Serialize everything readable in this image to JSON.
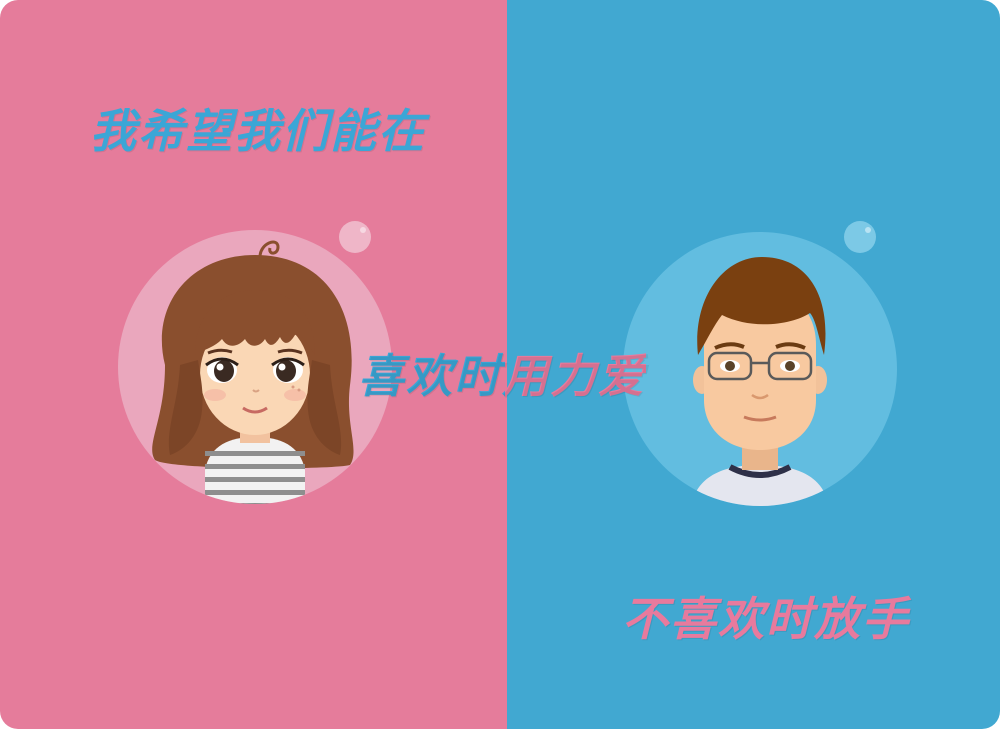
{
  "colors": {
    "left_panel": "#e57c9b",
    "right_panel": "#41a8d1",
    "left_circle": "#eaa7bd",
    "right_circle": "#62bde0",
    "text_blue": "#3ba6d6",
    "text_pink": "#e87a9d",
    "hair_brown": "#8a4f2e",
    "boy_hair": "#7a4010",
    "skin": "#fad7b5"
  },
  "phrases": {
    "top_left": "我希望我们能在",
    "center": "喜欢时用力爱",
    "bottom_right": "不喜欢时放手"
  },
  "avatars": {
    "girl_icon": "girl-avatar-icon",
    "boy_icon": "boy-avatar-icon"
  }
}
